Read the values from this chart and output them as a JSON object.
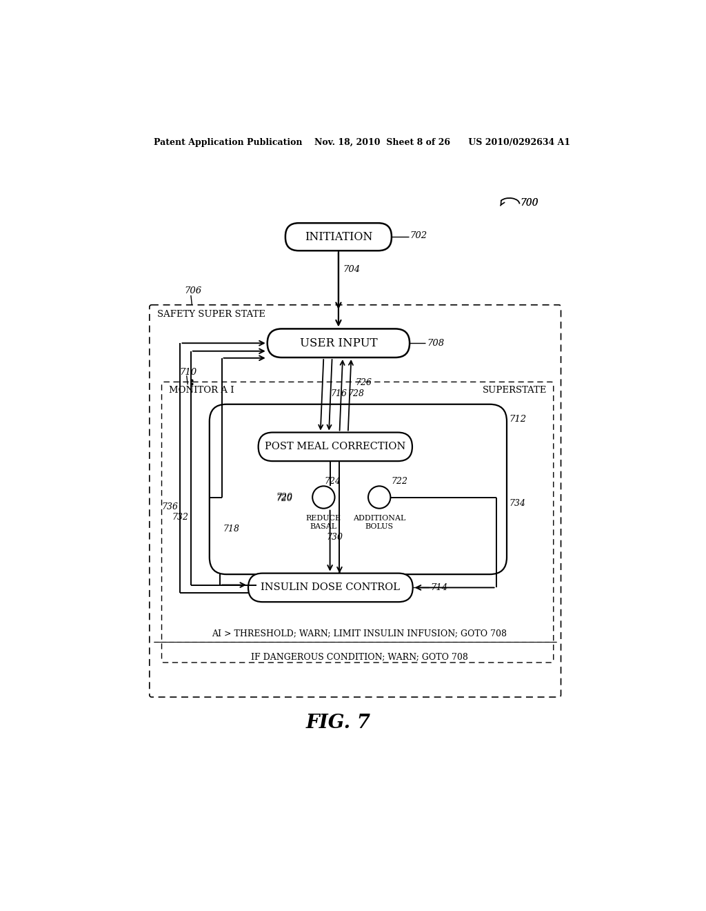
{
  "header": "Patent Application Publication    Nov. 18, 2010  Sheet 8 of 26      US 2010/0292634 A1",
  "fig_label": "FIG. 7",
  "label_initiation": "INITIATION",
  "label_user_input": "USER INPUT",
  "label_post_meal": "POST MEAL CORRECTION",
  "label_insulin_dose": "INSULIN DOSE CONTROL",
  "label_safety": "SAFETY SUPER STATE",
  "label_monitor": "MONITOR A I",
  "label_superstate": "SUPERSTATE",
  "label_reduce_basal": "REDUCE\nBASAL",
  "label_additional_bolus": "ADDITIONAL\nBOLUS",
  "label_ai_threshold": "AI > THRESHOLD; WARN; LIMIT INSULIN INFUSION; GOTO 708",
  "label_dangerous": "IF DANGEROUS CONDITION; WARN; GOTO 708",
  "bg_color": "#ffffff",
  "line_color": "#000000",
  "text_color": "#000000"
}
